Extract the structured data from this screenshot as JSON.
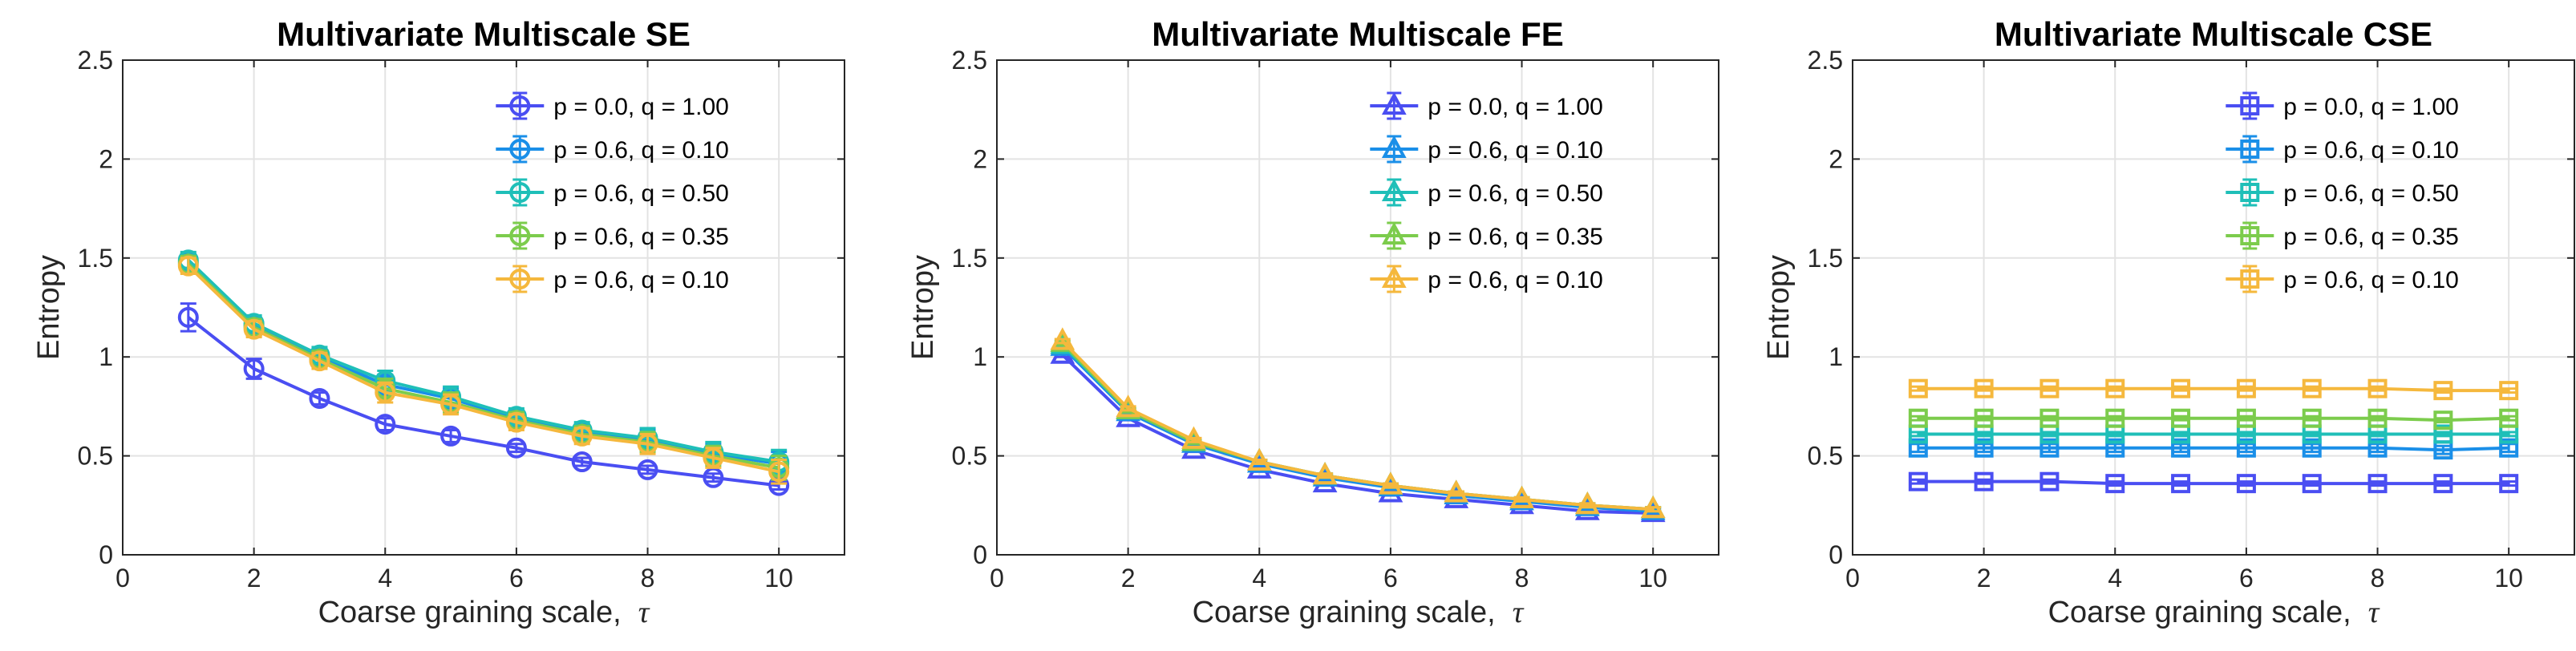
{
  "chart_data": [
    {
      "type": "line",
      "title": "Multivariate Multiscale SE",
      "xlabel": "Coarse graining scale,",
      "xlabel_symbol": "τ",
      "ylabel": "Entropy",
      "xlim": [
        0,
        11
      ],
      "ylim": [
        0,
        2.5
      ],
      "xticks": [
        0,
        2,
        4,
        6,
        8,
        10
      ],
      "xtick_labels": [
        "0",
        "2",
        "4",
        "6",
        "8",
        "10"
      ],
      "yticks": [
        0,
        0.5,
        1,
        1.5,
        2,
        2.5
      ],
      "ytick_labels": [
        "0",
        "0.5",
        "1",
        "1.5",
        "2",
        "2.5"
      ],
      "grid": true,
      "legend_position": "top-right",
      "marker": "circle",
      "x": [
        1,
        2,
        3,
        4,
        5,
        6,
        7,
        8,
        9,
        10
      ],
      "series": [
        {
          "name": "p = 0.0, q = 1.00",
          "color": "#4a4ef2",
          "values": [
            1.2,
            0.94,
            0.79,
            0.66,
            0.6,
            0.54,
            0.47,
            0.43,
            0.39,
            0.35
          ],
          "errors": [
            0.07,
            0.05,
            0.03,
            0.03,
            0.03,
            0.02,
            0.02,
            0.02,
            0.02,
            0.02
          ]
        },
        {
          "name": "p = 0.6, q = 0.10",
          "color": "#1a8fe8",
          "values": [
            1.48,
            1.16,
            1.0,
            0.86,
            0.79,
            0.69,
            0.62,
            0.58,
            0.51,
            0.46
          ],
          "errors": [
            0.04,
            0.04,
            0.04,
            0.05,
            0.05,
            0.04,
            0.04,
            0.05,
            0.05,
            0.06
          ]
        },
        {
          "name": "p = 0.6, q = 0.50",
          "color": "#1fbfb8",
          "values": [
            1.49,
            1.17,
            1.01,
            0.88,
            0.8,
            0.7,
            0.63,
            0.59,
            0.52,
            0.47
          ],
          "errors": [
            0.04,
            0.04,
            0.04,
            0.05,
            0.05,
            0.04,
            0.04,
            0.05,
            0.05,
            0.06
          ]
        },
        {
          "name": "p = 0.6, q = 0.35",
          "color": "#7ccc4c",
          "values": [
            1.47,
            1.15,
            0.99,
            0.84,
            0.77,
            0.68,
            0.61,
            0.57,
            0.5,
            0.44
          ],
          "errors": [
            0.04,
            0.04,
            0.04,
            0.05,
            0.05,
            0.04,
            0.04,
            0.05,
            0.05,
            0.06
          ]
        },
        {
          "name": "p = 0.6, q = 0.10",
          "color": "#f5b83d",
          "values": [
            1.46,
            1.14,
            0.98,
            0.82,
            0.76,
            0.67,
            0.6,
            0.56,
            0.49,
            0.42
          ],
          "errors": [
            0.04,
            0.04,
            0.04,
            0.05,
            0.05,
            0.04,
            0.04,
            0.05,
            0.05,
            0.06
          ]
        }
      ]
    },
    {
      "type": "line",
      "title": "Multivariate Multiscale FE",
      "xlabel": "Coarse graining scale,",
      "xlabel_symbol": "τ",
      "ylabel": "Entropy",
      "xlim": [
        0,
        11
      ],
      "ylim": [
        0,
        2.5
      ],
      "xticks": [
        0,
        2,
        4,
        6,
        8,
        10
      ],
      "xtick_labels": [
        "0",
        "2",
        "4",
        "6",
        "8",
        "10"
      ],
      "yticks": [
        0,
        0.5,
        1,
        1.5,
        2,
        2.5
      ],
      "ytick_labels": [
        "0",
        "0.5",
        "1",
        "1.5",
        "2",
        "2.5"
      ],
      "grid": true,
      "legend_position": "top-right",
      "marker": "triangle",
      "x": [
        1,
        2,
        3,
        4,
        5,
        6,
        7,
        8,
        9,
        10
      ],
      "series": [
        {
          "name": "p = 0.0, q = 1.00",
          "color": "#4a4ef2",
          "values": [
            1.01,
            0.69,
            0.53,
            0.43,
            0.36,
            0.31,
            0.28,
            0.25,
            0.22,
            0.21
          ],
          "errors": [
            0.01,
            0.01,
            0.01,
            0.01,
            0.01,
            0.01,
            0.01,
            0.01,
            0.01,
            0.01
          ]
        },
        {
          "name": "p = 0.6, q = 0.10",
          "color": "#1a8fe8",
          "values": [
            1.05,
            0.72,
            0.56,
            0.46,
            0.39,
            0.34,
            0.3,
            0.27,
            0.24,
            0.22
          ],
          "errors": [
            0.01,
            0.01,
            0.01,
            0.01,
            0.01,
            0.01,
            0.01,
            0.01,
            0.01,
            0.01
          ]
        },
        {
          "name": "p = 0.6, q = 0.50",
          "color": "#1fbfb8",
          "values": [
            1.06,
            0.73,
            0.57,
            0.47,
            0.4,
            0.35,
            0.31,
            0.28,
            0.25,
            0.23
          ],
          "errors": [
            0.01,
            0.01,
            0.01,
            0.01,
            0.01,
            0.01,
            0.01,
            0.01,
            0.01,
            0.01
          ]
        },
        {
          "name": "p = 0.6, q = 0.35",
          "color": "#7ccc4c",
          "values": [
            1.07,
            0.73,
            0.57,
            0.47,
            0.4,
            0.35,
            0.31,
            0.28,
            0.25,
            0.23
          ],
          "errors": [
            0.01,
            0.01,
            0.01,
            0.01,
            0.01,
            0.01,
            0.01,
            0.01,
            0.01,
            0.01
          ]
        },
        {
          "name": "p = 0.6, q = 0.10",
          "color": "#f5b83d",
          "values": [
            1.08,
            0.74,
            0.58,
            0.47,
            0.4,
            0.35,
            0.31,
            0.28,
            0.25,
            0.23
          ],
          "errors": [
            0.01,
            0.01,
            0.01,
            0.01,
            0.01,
            0.01,
            0.01,
            0.01,
            0.01,
            0.01
          ]
        }
      ]
    },
    {
      "type": "line",
      "title": "Multivariate Multiscale CSE",
      "xlabel": "Coarse graining scale,",
      "xlabel_symbol": "τ",
      "ylabel": "Entropy",
      "xlim": [
        0,
        11
      ],
      "ylim": [
        0,
        2.5
      ],
      "xticks": [
        0,
        2,
        4,
        6,
        8,
        10
      ],
      "xtick_labels": [
        "0",
        "2",
        "4",
        "6",
        "8",
        "10"
      ],
      "yticks": [
        0,
        0.5,
        1,
        1.5,
        2,
        2.5
      ],
      "ytick_labels": [
        "0",
        "0.5",
        "1",
        "1.5",
        "2",
        "2.5"
      ],
      "grid": true,
      "legend_position": "top-right",
      "marker": "square",
      "x": [
        1,
        2,
        3,
        4,
        5,
        6,
        7,
        8,
        9,
        10
      ],
      "series": [
        {
          "name": "p = 0.0, q = 1.00",
          "color": "#4a4ef2",
          "values": [
            0.37,
            0.37,
            0.37,
            0.36,
            0.36,
            0.36,
            0.36,
            0.36,
            0.36,
            0.36
          ],
          "errors": [
            0.01,
            0.01,
            0.01,
            0.01,
            0.01,
            0.01,
            0.01,
            0.01,
            0.01,
            0.01
          ]
        },
        {
          "name": "p = 0.6, q = 0.10",
          "color": "#1a8fe8",
          "values": [
            0.54,
            0.54,
            0.54,
            0.54,
            0.54,
            0.54,
            0.54,
            0.54,
            0.53,
            0.54
          ],
          "errors": [
            0.02,
            0.02,
            0.02,
            0.02,
            0.02,
            0.02,
            0.02,
            0.02,
            0.02,
            0.02
          ]
        },
        {
          "name": "p = 0.6, q = 0.50",
          "color": "#1fbfb8",
          "values": [
            0.61,
            0.61,
            0.61,
            0.61,
            0.61,
            0.61,
            0.61,
            0.61,
            0.61,
            0.61
          ],
          "errors": [
            0.01,
            0.01,
            0.01,
            0.01,
            0.01,
            0.01,
            0.01,
            0.01,
            0.01,
            0.01
          ]
        },
        {
          "name": "p = 0.6, q = 0.35",
          "color": "#7ccc4c",
          "values": [
            0.69,
            0.69,
            0.69,
            0.69,
            0.69,
            0.69,
            0.69,
            0.69,
            0.68,
            0.69
          ],
          "errors": [
            0.01,
            0.01,
            0.01,
            0.01,
            0.01,
            0.01,
            0.01,
            0.01,
            0.01,
            0.01
          ]
        },
        {
          "name": "p = 0.6, q = 0.10",
          "color": "#f5b83d",
          "values": [
            0.84,
            0.84,
            0.84,
            0.84,
            0.84,
            0.84,
            0.84,
            0.84,
            0.83,
            0.83
          ],
          "errors": [
            0.01,
            0.01,
            0.01,
            0.01,
            0.01,
            0.01,
            0.01,
            0.01,
            0.01,
            0.01
          ]
        }
      ]
    }
  ]
}
